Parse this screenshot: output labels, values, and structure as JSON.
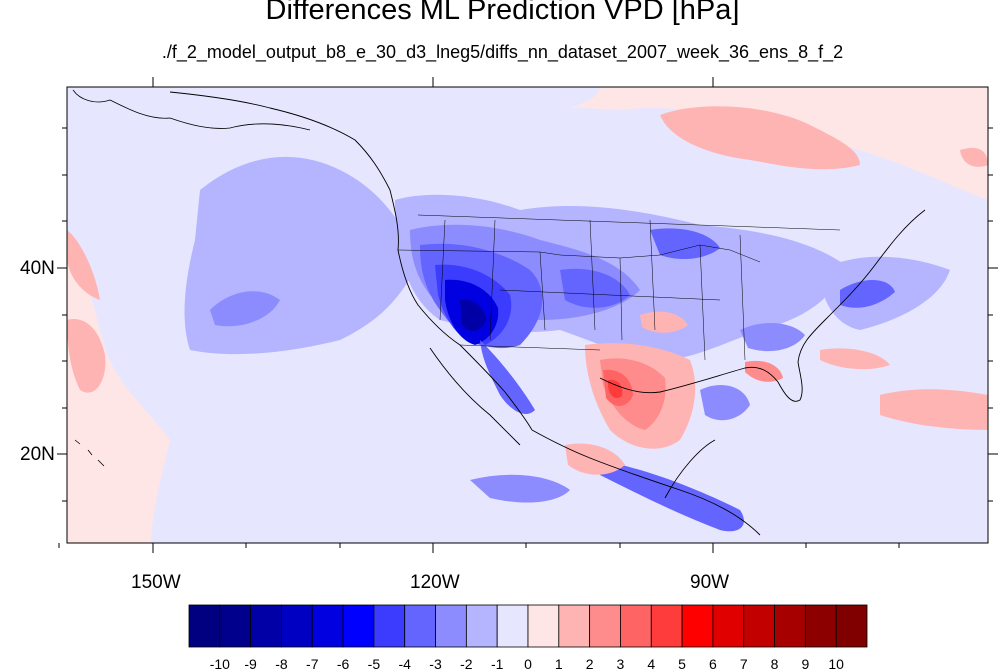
{
  "title": "Differences ML Prediction VPD [hPa]",
  "subtitle": "./f_2_model_output_b8_e_30_d3_lneg5/diffs_nn_dataset_2007_week_36_ens_8_f_2",
  "lat_labels": [
    "40N",
    "20N"
  ],
  "lon_labels": [
    "150W",
    "120W",
    "90W"
  ],
  "colorbar": {
    "labels": [
      "-10",
      "-9",
      "-8",
      "-7",
      "-6",
      "-5",
      "-4",
      "-3",
      "-2",
      "-1",
      "0",
      "1",
      "2",
      "3",
      "4",
      "5",
      "6",
      "7",
      "8",
      "9",
      "10"
    ],
    "colors": [
      "#000080",
      "#00008c",
      "#0000a6",
      "#0000c3",
      "#0000e0",
      "#0000ff",
      "#3c3cff",
      "#6464ff",
      "#8c8cff",
      "#b4b4ff",
      "#e6e6ff",
      "#ffe6e6",
      "#ffb4b4",
      "#ff8c8c",
      "#ff6464",
      "#ff3c3c",
      "#ff0000",
      "#e00000",
      "#c30000",
      "#a60000",
      "#8c0000",
      "#800000"
    ]
  },
  "field_colors": {
    "background": "#ffe6e6",
    "light_blue": "#e6e6ff",
    "blue_1": "#b4b4ff",
    "blue_2": "#8c8cff",
    "blue_3": "#6464ff",
    "blue_4": "#3c3cff",
    "blue_5": "#0000e0",
    "blue_6": "#0000a6",
    "red_1": "#ffb4b4",
    "red_2": "#ff8c8c",
    "red_3": "#ff6464",
    "red_4": "#ff3c3c"
  }
}
